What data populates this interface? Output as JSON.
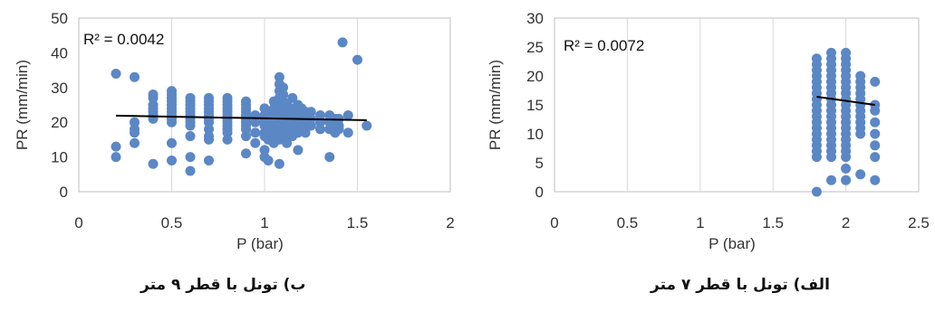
{
  "chart_data": [
    {
      "type": "scatter",
      "caption": "ب) تونل با قطر ۹ متر",
      "annotation": "R² = 0.0042",
      "xlabel": "P (bar)",
      "ylabel": "PR (mm/min)",
      "xlim": [
        0,
        2
      ],
      "ylim": [
        0,
        50
      ],
      "xticks": [
        "0",
        "0.5",
        "1",
        "1.5",
        "2"
      ],
      "yticks": [
        "0",
        "10",
        "20",
        "30",
        "40",
        "50"
      ],
      "grid": "vertical",
      "marker_color": "#5b87c5",
      "trendline_color": "#000000",
      "trendline": [
        [
          0.2,
          21.9
        ],
        [
          1.55,
          20.6
        ]
      ],
      "points": [
        [
          0.2,
          34
        ],
        [
          0.2,
          13
        ],
        [
          0.2,
          10
        ],
        [
          0.3,
          33
        ],
        [
          0.3,
          20
        ],
        [
          0.3,
          18
        ],
        [
          0.3,
          17
        ],
        [
          0.3,
          14
        ],
        [
          0.4,
          28
        ],
        [
          0.4,
          27
        ],
        [
          0.4,
          25
        ],
        [
          0.4,
          24
        ],
        [
          0.4,
          23
        ],
        [
          0.4,
          22
        ],
        [
          0.4,
          21
        ],
        [
          0.4,
          8
        ],
        [
          0.5,
          29
        ],
        [
          0.5,
          28
        ],
        [
          0.5,
          27
        ],
        [
          0.5,
          26
        ],
        [
          0.5,
          25
        ],
        [
          0.5,
          24
        ],
        [
          0.5,
          23
        ],
        [
          0.5,
          22
        ],
        [
          0.5,
          21
        ],
        [
          0.5,
          20
        ],
        [
          0.5,
          14
        ],
        [
          0.5,
          9
        ],
        [
          0.6,
          27
        ],
        [
          0.6,
          26
        ],
        [
          0.6,
          25
        ],
        [
          0.6,
          24
        ],
        [
          0.6,
          23
        ],
        [
          0.6,
          22
        ],
        [
          0.6,
          21
        ],
        [
          0.6,
          20
        ],
        [
          0.6,
          19
        ],
        [
          0.6,
          16
        ],
        [
          0.6,
          10
        ],
        [
          0.6,
          6
        ],
        [
          0.7,
          27
        ],
        [
          0.7,
          26
        ],
        [
          0.7,
          25
        ],
        [
          0.7,
          24
        ],
        [
          0.7,
          23
        ],
        [
          0.7,
          22
        ],
        [
          0.7,
          21
        ],
        [
          0.7,
          20
        ],
        [
          0.7,
          18
        ],
        [
          0.7,
          16
        ],
        [
          0.7,
          15
        ],
        [
          0.7,
          9
        ],
        [
          0.8,
          27
        ],
        [
          0.8,
          26
        ],
        [
          0.8,
          25
        ],
        [
          0.8,
          24
        ],
        [
          0.8,
          23
        ],
        [
          0.8,
          22
        ],
        [
          0.8,
          21
        ],
        [
          0.8,
          20
        ],
        [
          0.8,
          19
        ],
        [
          0.8,
          18
        ],
        [
          0.8,
          17
        ],
        [
          0.8,
          15
        ],
        [
          0.9,
          26
        ],
        [
          0.9,
          25
        ],
        [
          0.9,
          24
        ],
        [
          0.9,
          23
        ],
        [
          0.9,
          22
        ],
        [
          0.9,
          21
        ],
        [
          0.9,
          20
        ],
        [
          0.9,
          19
        ],
        [
          0.9,
          18
        ],
        [
          0.9,
          16
        ],
        [
          0.9,
          11
        ],
        [
          0.95,
          22
        ],
        [
          0.95,
          20
        ],
        [
          0.95,
          17
        ],
        [
          0.95,
          14
        ],
        [
          1.0,
          24
        ],
        [
          1.0,
          22
        ],
        [
          1.0,
          21
        ],
        [
          1.0,
          20
        ],
        [
          1.0,
          19
        ],
        [
          1.0,
          17
        ],
        [
          1.0,
          16
        ],
        [
          1.0,
          12
        ],
        [
          1.0,
          10
        ],
        [
          1.02,
          23
        ],
        [
          1.02,
          18
        ],
        [
          1.02,
          15
        ],
        [
          1.02,
          9
        ],
        [
          1.05,
          26
        ],
        [
          1.05,
          24
        ],
        [
          1.05,
          22
        ],
        [
          1.05,
          20
        ],
        [
          1.05,
          18
        ],
        [
          1.05,
          16
        ],
        [
          1.05,
          14
        ],
        [
          1.08,
          33
        ],
        [
          1.08,
          31
        ],
        [
          1.08,
          29
        ],
        [
          1.08,
          27
        ],
        [
          1.08,
          25
        ],
        [
          1.08,
          23
        ],
        [
          1.08,
          21
        ],
        [
          1.08,
          19
        ],
        [
          1.08,
          17
        ],
        [
          1.08,
          15
        ],
        [
          1.08,
          8
        ],
        [
          1.1,
          30
        ],
        [
          1.1,
          28
        ],
        [
          1.1,
          26
        ],
        [
          1.1,
          24
        ],
        [
          1.1,
          22
        ],
        [
          1.1,
          20
        ],
        [
          1.1,
          18
        ],
        [
          1.1,
          16
        ],
        [
          1.12,
          25
        ],
        [
          1.12,
          23
        ],
        [
          1.12,
          21
        ],
        [
          1.12,
          19
        ],
        [
          1.12,
          17
        ],
        [
          1.12,
          15
        ],
        [
          1.12,
          14
        ],
        [
          1.15,
          27
        ],
        [
          1.15,
          24
        ],
        [
          1.15,
          22
        ],
        [
          1.15,
          20
        ],
        [
          1.15,
          18
        ],
        [
          1.15,
          16
        ],
        [
          1.18,
          25
        ],
        [
          1.18,
          23
        ],
        [
          1.18,
          21
        ],
        [
          1.18,
          19
        ],
        [
          1.18,
          17
        ],
        [
          1.18,
          12
        ],
        [
          1.2,
          24
        ],
        [
          1.2,
          22
        ],
        [
          1.2,
          20
        ],
        [
          1.2,
          18
        ],
        [
          1.22,
          23
        ],
        [
          1.22,
          21
        ],
        [
          1.22,
          19
        ],
        [
          1.22,
          17
        ],
        [
          1.25,
          23
        ],
        [
          1.25,
          21
        ],
        [
          1.25,
          19
        ],
        [
          1.3,
          22
        ],
        [
          1.3,
          20
        ],
        [
          1.3,
          18
        ],
        [
          1.35,
          22
        ],
        [
          1.35,
          20
        ],
        [
          1.35,
          18
        ],
        [
          1.35,
          10
        ],
        [
          1.38,
          21
        ],
        [
          1.38,
          19
        ],
        [
          1.38,
          17
        ],
        [
          1.4,
          21
        ],
        [
          1.4,
          19
        ],
        [
          1.4,
          18
        ],
        [
          1.42,
          43
        ],
        [
          1.45,
          22
        ],
        [
          1.45,
          17
        ],
        [
          1.5,
          38
        ],
        [
          1.55,
          19
        ]
      ]
    },
    {
      "type": "scatter",
      "caption": "الف) تونل با قطر ۷ متر",
      "annotation": "R² = 0.0072",
      "xlabel": "P (bar)",
      "ylabel": "PR (mm/min)",
      "xlim": [
        0,
        2.5
      ],
      "ylim": [
        0,
        30
      ],
      "xticks": [
        "0",
        "0.5",
        "1",
        "1.5",
        "2",
        "2.5"
      ],
      "yticks": [
        "0",
        "5",
        "10",
        "15",
        "20",
        "25",
        "30"
      ],
      "grid": "vertical",
      "marker_color": "#5b87c5",
      "trendline_color": "#000000",
      "trendline": [
        [
          1.8,
          16.4
        ],
        [
          2.2,
          15.0
        ]
      ],
      "points": [
        [
          1.8,
          23
        ],
        [
          1.8,
          22
        ],
        [
          1.8,
          21
        ],
        [
          1.8,
          20
        ],
        [
          1.8,
          19
        ],
        [
          1.8,
          18
        ],
        [
          1.8,
          17
        ],
        [
          1.8,
          16
        ],
        [
          1.8,
          15
        ],
        [
          1.8,
          14
        ],
        [
          1.8,
          13
        ],
        [
          1.8,
          12
        ],
        [
          1.8,
          11
        ],
        [
          1.8,
          10
        ],
        [
          1.8,
          9
        ],
        [
          1.8,
          8
        ],
        [
          1.8,
          7
        ],
        [
          1.8,
          6
        ],
        [
          1.8,
          0
        ],
        [
          1.9,
          24
        ],
        [
          1.9,
          23
        ],
        [
          1.9,
          22
        ],
        [
          1.9,
          21
        ],
        [
          1.9,
          20
        ],
        [
          1.9,
          19
        ],
        [
          1.9,
          18
        ],
        [
          1.9,
          17
        ],
        [
          1.9,
          16
        ],
        [
          1.9,
          15
        ],
        [
          1.9,
          14
        ],
        [
          1.9,
          13
        ],
        [
          1.9,
          12
        ],
        [
          1.9,
          11
        ],
        [
          1.9,
          10
        ],
        [
          1.9,
          9
        ],
        [
          1.9,
          8
        ],
        [
          1.9,
          7
        ],
        [
          1.9,
          6
        ],
        [
          1.9,
          2
        ],
        [
          2.0,
          24
        ],
        [
          2.0,
          23
        ],
        [
          2.0,
          22
        ],
        [
          2.0,
          21
        ],
        [
          2.0,
          20
        ],
        [
          2.0,
          19
        ],
        [
          2.0,
          18
        ],
        [
          2.0,
          17
        ],
        [
          2.0,
          16
        ],
        [
          2.0,
          15
        ],
        [
          2.0,
          14
        ],
        [
          2.0,
          13
        ],
        [
          2.0,
          12
        ],
        [
          2.0,
          11
        ],
        [
          2.0,
          10
        ],
        [
          2.0,
          9
        ],
        [
          2.0,
          8
        ],
        [
          2.0,
          7
        ],
        [
          2.0,
          6
        ],
        [
          2.0,
          4
        ],
        [
          2.0,
          2
        ],
        [
          2.1,
          20
        ],
        [
          2.1,
          19
        ],
        [
          2.1,
          18
        ],
        [
          2.1,
          17
        ],
        [
          2.1,
          16
        ],
        [
          2.1,
          15
        ],
        [
          2.1,
          14
        ],
        [
          2.1,
          13
        ],
        [
          2.1,
          12
        ],
        [
          2.1,
          11
        ],
        [
          2.1,
          10
        ],
        [
          2.1,
          3
        ],
        [
          2.2,
          19
        ],
        [
          2.2,
          15
        ],
        [
          2.2,
          14
        ],
        [
          2.2,
          12
        ],
        [
          2.2,
          10
        ],
        [
          2.2,
          8
        ],
        [
          2.2,
          6
        ],
        [
          2.2,
          2
        ]
      ]
    }
  ]
}
